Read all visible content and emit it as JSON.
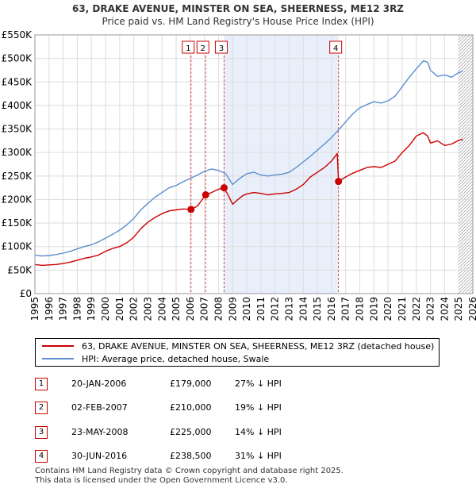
{
  "chart_data": {
    "type": "line",
    "title": "63, DRAKE AVENUE, MINSTER ON SEA, SHEERNESS, ME12 3RZ",
    "subtitle": "Price paid vs. HM Land Registry's House Price Index (HPI)",
    "xlabel": "",
    "ylabel": "",
    "xlim": [
      1995,
      2026
    ],
    "ylim": [
      0,
      550000
    ],
    "x_ticks": [
      "1995",
      "1996",
      "1997",
      "1998",
      "1999",
      "2000",
      "2001",
      "2002",
      "2003",
      "2004",
      "2005",
      "2006",
      "2007",
      "2008",
      "2009",
      "2010",
      "2011",
      "2012",
      "2013",
      "2014",
      "2015",
      "2016",
      "2017",
      "2018",
      "2019",
      "2020",
      "2021",
      "2022",
      "2023",
      "2024",
      "2025",
      "2026"
    ],
    "y_ticks": [
      {
        "value": 0,
        "label": "£0"
      },
      {
        "value": 50000,
        "label": "£50K"
      },
      {
        "value": 100000,
        "label": "£100K"
      },
      {
        "value": 150000,
        "label": "£150K"
      },
      {
        "value": 200000,
        "label": "£200K"
      },
      {
        "value": 250000,
        "label": "£250K"
      },
      {
        "value": 300000,
        "label": "£300K"
      },
      {
        "value": 350000,
        "label": "£350K"
      },
      {
        "value": 400000,
        "label": "£400K"
      },
      {
        "value": 450000,
        "label": "£450K"
      },
      {
        "value": 500000,
        "label": "£500K"
      },
      {
        "value": 550000,
        "label": "£550K"
      }
    ],
    "grid": true,
    "shaded_period": [
      2008.39,
      2016.49
    ],
    "hatched_from": 2025.0,
    "series": [
      {
        "name": "63, DRAKE AVENUE, MINSTER ON SEA, SHEERNESS, ME12 3RZ (detached house)",
        "color": "#cc0000",
        "x": [
          1995.0,
          1995.5,
          1996.0,
          1996.5,
          1997.0,
          1997.5,
          1998.0,
          1998.5,
          1999.0,
          1999.5,
          2000.0,
          2000.5,
          2001.0,
          2001.5,
          2002.0,
          2002.5,
          2003.0,
          2003.5,
          2004.0,
          2004.5,
          2005.0,
          2005.5,
          2006.05,
          2006.05,
          2006.5,
          2007.09,
          2007.09,
          2007.5,
          2008.0,
          2008.39,
          2008.39,
          2008.7,
          2009.0,
          2009.3,
          2009.7,
          2010.0,
          2010.5,
          2011.0,
          2011.5,
          2012.0,
          2012.5,
          2013.0,
          2013.5,
          2014.0,
          2014.5,
          2015.0,
          2015.5,
          2016.0,
          2016.4,
          2016.49,
          2016.49,
          2017.0,
          2017.5,
          2018.0,
          2018.5,
          2019.0,
          2019.5,
          2020.0,
          2020.5,
          2021.0,
          2021.5,
          2022.0,
          2022.5,
          2022.8,
          2023.0,
          2023.5,
          2024.0,
          2024.5,
          2025.0,
          2025.3
        ],
        "values": [
          62000,
          60000,
          61000,
          62000,
          64000,
          67000,
          71000,
          75000,
          78000,
          82000,
          90000,
          96000,
          100000,
          108000,
          120000,
          138000,
          152000,
          162000,
          170000,
          176000,
          178000,
          180000,
          179000,
          179000,
          186000,
          210000,
          210000,
          215000,
          222000,
          225000,
          225000,
          208000,
          190000,
          198000,
          208000,
          212000,
          215000,
          213000,
          210000,
          212000,
          213000,
          215000,
          222000,
          232000,
          248000,
          258000,
          268000,
          282000,
          298000,
          238500,
          238500,
          248000,
          256000,
          262000,
          268000,
          270000,
          268000,
          275000,
          282000,
          300000,
          315000,
          335000,
          342000,
          335000,
          320000,
          325000,
          315000,
          318000,
          326000,
          328000
        ]
      },
      {
        "name": "HPI: Average price, detached house, Swale",
        "color": "#5a8fd0",
        "x": [
          1995.0,
          1995.5,
          1996.0,
          1996.5,
          1997.0,
          1997.5,
          1998.0,
          1998.5,
          1999.0,
          1999.5,
          2000.0,
          2000.5,
          2001.0,
          2001.5,
          2002.0,
          2002.5,
          2003.0,
          2003.5,
          2004.0,
          2004.5,
          2005.0,
          2005.5,
          2006.0,
          2006.5,
          2007.0,
          2007.5,
          2008.0,
          2008.5,
          2009.0,
          2009.5,
          2010.0,
          2010.5,
          2011.0,
          2011.5,
          2012.0,
          2012.5,
          2013.0,
          2013.5,
          2014.0,
          2014.5,
          2015.0,
          2015.5,
          2016.0,
          2016.5,
          2017.0,
          2017.5,
          2018.0,
          2018.5,
          2019.0,
          2019.5,
          2020.0,
          2020.5,
          2021.0,
          2021.5,
          2022.0,
          2022.5,
          2022.8,
          2023.0,
          2023.5,
          2024.0,
          2024.5,
          2025.0,
          2025.3
        ],
        "values": [
          82000,
          80000,
          81000,
          83000,
          86000,
          90000,
          95000,
          100000,
          104000,
          110000,
          118000,
          126000,
          135000,
          146000,
          160000,
          178000,
          192000,
          205000,
          215000,
          225000,
          230000,
          238000,
          245000,
          252000,
          260000,
          265000,
          262000,
          255000,
          232000,
          245000,
          255000,
          258000,
          252000,
          250000,
          252000,
          254000,
          258000,
          268000,
          280000,
          292000,
          305000,
          318000,
          332000,
          348000,
          365000,
          382000,
          395000,
          402000,
          408000,
          405000,
          410000,
          420000,
          440000,
          460000,
          478000,
          495000,
          492000,
          475000,
          462000,
          465000,
          460000,
          470000,
          473000
        ]
      }
    ],
    "sales": [
      {
        "label": "1",
        "x": 2006.05,
        "value": 179000
      },
      {
        "label": "2",
        "x": 2007.09,
        "value": 210000
      },
      {
        "label": "3",
        "x": 2008.39,
        "value": 225000
      },
      {
        "label": "4",
        "x": 2016.49,
        "value": 238500
      }
    ]
  },
  "legend": {
    "red_label": "63, DRAKE AVENUE, MINSTER ON SEA, SHEERNESS, ME12 3RZ (detached house)",
    "blue_label": "HPI: Average price, detached house, Swale"
  },
  "sales_table": [
    {
      "num": "1",
      "date": "20-JAN-2006",
      "price": "£179,000",
      "hpi": "27% ↓ HPI"
    },
    {
      "num": "2",
      "date": "02-FEB-2007",
      "price": "£210,000",
      "hpi": "19% ↓ HPI"
    },
    {
      "num": "3",
      "date": "23-MAY-2008",
      "price": "£225,000",
      "hpi": "14% ↓ HPI"
    },
    {
      "num": "4",
      "date": "30-JUN-2016",
      "price": "£238,500",
      "hpi": "31% ↓ HPI"
    }
  ],
  "footer": {
    "line1": "Contains HM Land Registry data © Crown copyright and database right 2025.",
    "line2": "This data is licensed under the Open Government Licence v3.0."
  }
}
